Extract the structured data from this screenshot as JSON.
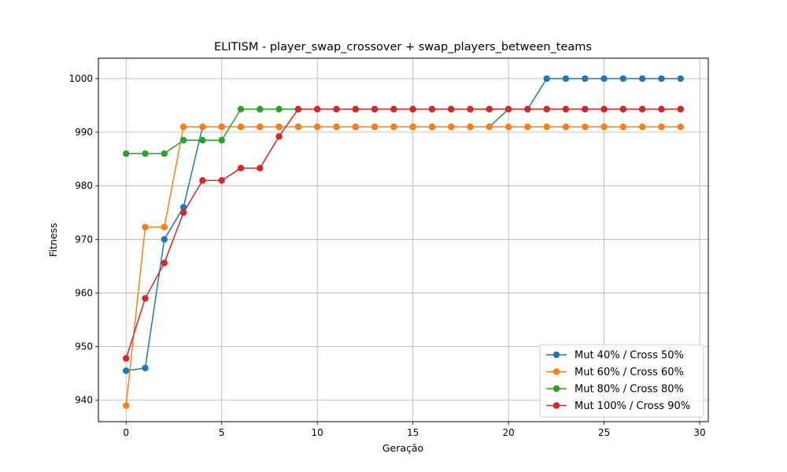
{
  "chart_data": {
    "type": "line",
    "title": "ELITISM - player_swap_crossover + swap_players_between_teams",
    "xlabel": "Geração",
    "ylabel": "Fitness",
    "xlim": [
      -1.45,
      30.45
    ],
    "ylim": [
      936,
      1003.8
    ],
    "xticks": [
      0,
      5,
      10,
      15,
      20,
      25,
      30
    ],
    "yticks": [
      940,
      950,
      960,
      970,
      980,
      990,
      1000
    ],
    "grid": true,
    "legend_position": "lower-right",
    "x": [
      0,
      1,
      2,
      3,
      4,
      5,
      6,
      7,
      8,
      9,
      10,
      11,
      12,
      13,
      14,
      15,
      16,
      17,
      18,
      19,
      20,
      21,
      22,
      23,
      24,
      25,
      26,
      27,
      28,
      29
    ],
    "series": [
      {
        "name": "Mut 40% / Cross 50%",
        "color": "#1f77b4",
        "values": [
          945.5,
          946,
          970,
          976,
          991,
          991,
          991,
          991,
          991,
          991,
          991,
          991,
          991,
          991,
          991,
          991,
          991,
          991,
          991,
          991,
          994.3,
          994.3,
          1000,
          1000,
          1000,
          1000,
          1000,
          1000,
          1000,
          1000
        ]
      },
      {
        "name": "Mut 60% / Cross 60%",
        "color": "#ff7f0e",
        "values": [
          939,
          972.3,
          972.3,
          991,
          991,
          991,
          991,
          991,
          991,
          991,
          991,
          991,
          991,
          991,
          991,
          991,
          991,
          991,
          991,
          991,
          991,
          991,
          991,
          991,
          991,
          991,
          991,
          991,
          991,
          991
        ]
      },
      {
        "name": "Mut 80% / Cross 80%",
        "color": "#2ca02c",
        "values": [
          986,
          986,
          986,
          988.5,
          988.5,
          988.5,
          994.3,
          994.3,
          994.3,
          994.3,
          994.3,
          994.3,
          994.3,
          994.3,
          994.3,
          994.3,
          994.3,
          994.3,
          994.3,
          994.3,
          994.3,
          994.3,
          994.3,
          994.3,
          994.3,
          994.3,
          994.3,
          994.3,
          994.3,
          994.3
        ]
      },
      {
        "name": "Mut 100% / Cross 90%",
        "color": "#d62728",
        "values": [
          947.8,
          959,
          965.6,
          975,
          981,
          981,
          983.3,
          983.3,
          989.2,
          994.3,
          994.3,
          994.3,
          994.3,
          994.3,
          994.3,
          994.3,
          994.3,
          994.3,
          994.3,
          994.3,
          994.3,
          994.3,
          994.3,
          994.3,
          994.3,
          994.3,
          994.3,
          994.3,
          994.3,
          994.3
        ]
      }
    ]
  }
}
